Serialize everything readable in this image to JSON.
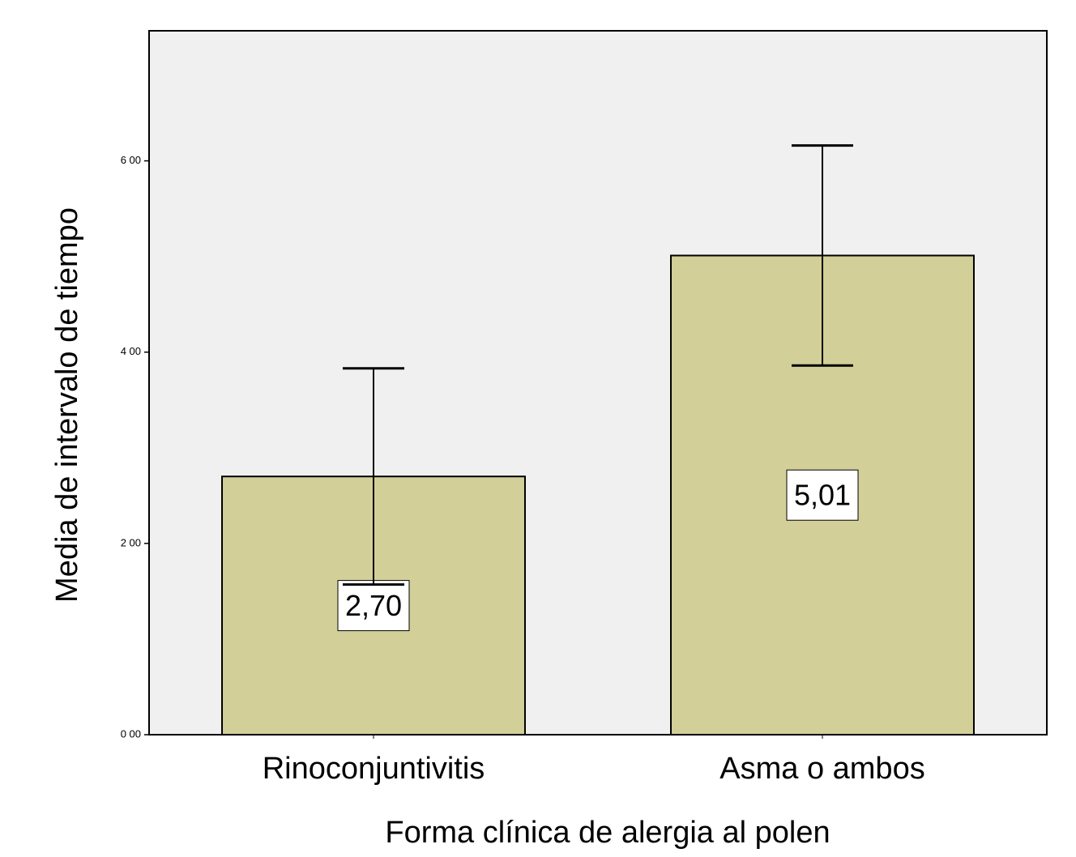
{
  "chart_data": {
    "type": "bar",
    "x_label": "Forma clínica de alergia al polen",
    "y_label": "Media de intervalo de tiempo",
    "categories": [
      "Rinoconjuntivitis",
      "Asma o ambos"
    ],
    "values": [
      2.7,
      5.01
    ],
    "value_labels": [
      "2,70",
      "5,01"
    ],
    "errors": [
      1.13,
      1.15
    ],
    "color": "#d3cf99",
    "background": "#f0f0f0",
    "ylim": [
      0,
      7.36
    ],
    "yticks": [
      {
        "value": 0,
        "label": "0 00"
      },
      {
        "value": 2,
        "label": "2 00"
      },
      {
        "value": 4,
        "label": "4 00"
      },
      {
        "value": 6,
        "label": "6 00"
      }
    ]
  }
}
